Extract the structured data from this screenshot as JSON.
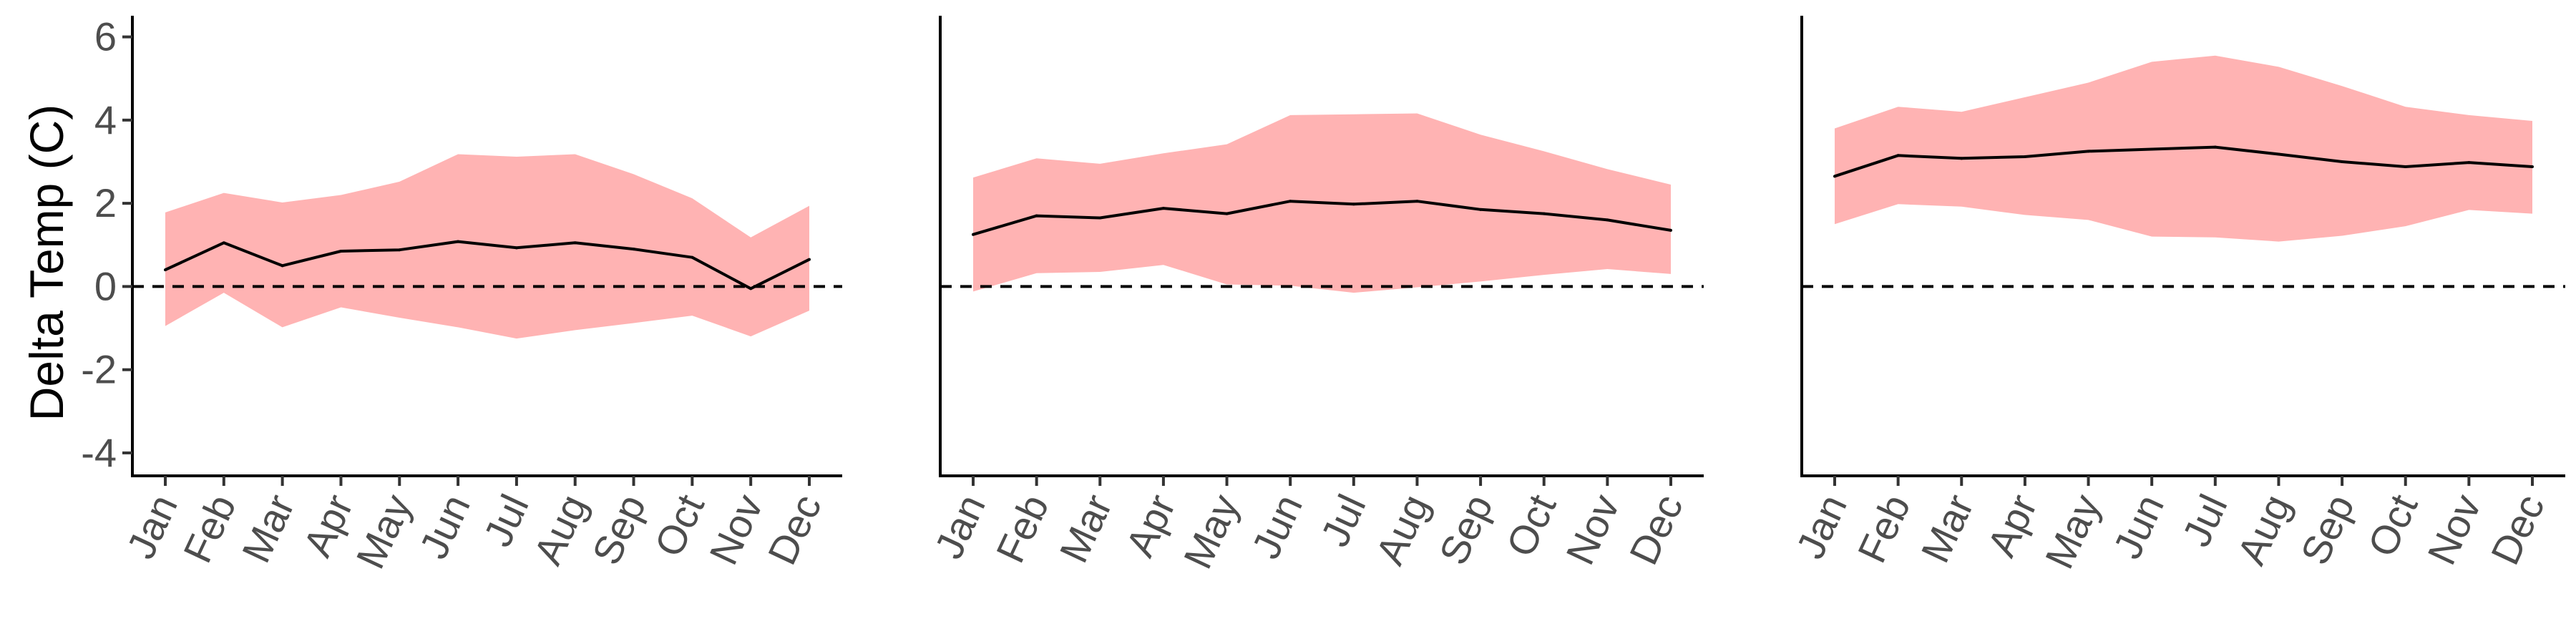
{
  "chart_data": {
    "type": "area",
    "ylabel": "Delta Temp (C)",
    "ylim": [
      -4.5,
      6.5
    ],
    "yticks": [
      6,
      4,
      2,
      0,
      -2,
      -4
    ],
    "ytick_labels": [
      "6",
      "4",
      "2",
      "0",
      "-2",
      "-4"
    ],
    "categories": [
      "Jan",
      "Feb",
      "Mar",
      "Apr",
      "May",
      "Jun",
      "Jul",
      "Aug",
      "Sep",
      "Oct",
      "Nov",
      "Dec"
    ],
    "reference_line": 0,
    "ribbon_color": "#ffb3b3",
    "line_color": "#000000",
    "panels": [
      {
        "mean": [
          0.4,
          1.05,
          0.5,
          0.85,
          0.88,
          1.08,
          0.93,
          1.05,
          0.9,
          0.7,
          -0.05,
          0.65
        ],
        "upper": [
          1.78,
          2.25,
          2.02,
          2.2,
          2.52,
          3.18,
          3.12,
          3.18,
          2.7,
          2.12,
          1.18,
          1.94
        ],
        "lower": [
          -0.95,
          -0.15,
          -0.98,
          -0.5,
          -0.75,
          -0.98,
          -1.25,
          -1.05,
          -0.88,
          -0.7,
          -1.2,
          -0.58
        ]
      },
      {
        "mean": [
          1.25,
          1.7,
          1.65,
          1.88,
          1.75,
          2.05,
          1.98,
          2.05,
          1.85,
          1.75,
          1.6,
          1.35
        ],
        "upper": [
          2.62,
          3.08,
          2.95,
          3.2,
          3.42,
          4.12,
          4.14,
          4.16,
          3.65,
          3.25,
          2.82,
          2.45
        ],
        "lower": [
          -0.12,
          0.32,
          0.35,
          0.52,
          0.05,
          0.02,
          -0.15,
          -0.02,
          0.12,
          0.28,
          0.42,
          0.3
        ]
      },
      {
        "mean": [
          2.65,
          3.15,
          3.08,
          3.12,
          3.25,
          3.3,
          3.35,
          3.18,
          3.0,
          2.88,
          2.98,
          2.88
        ],
        "upper": [
          3.8,
          4.32,
          4.2,
          4.55,
          4.9,
          5.4,
          5.55,
          5.28,
          4.82,
          4.32,
          4.12,
          3.98
        ],
        "lower": [
          1.5,
          1.98,
          1.92,
          1.72,
          1.6,
          1.2,
          1.18,
          1.08,
          1.22,
          1.45,
          1.84,
          1.75
        ]
      }
    ]
  }
}
